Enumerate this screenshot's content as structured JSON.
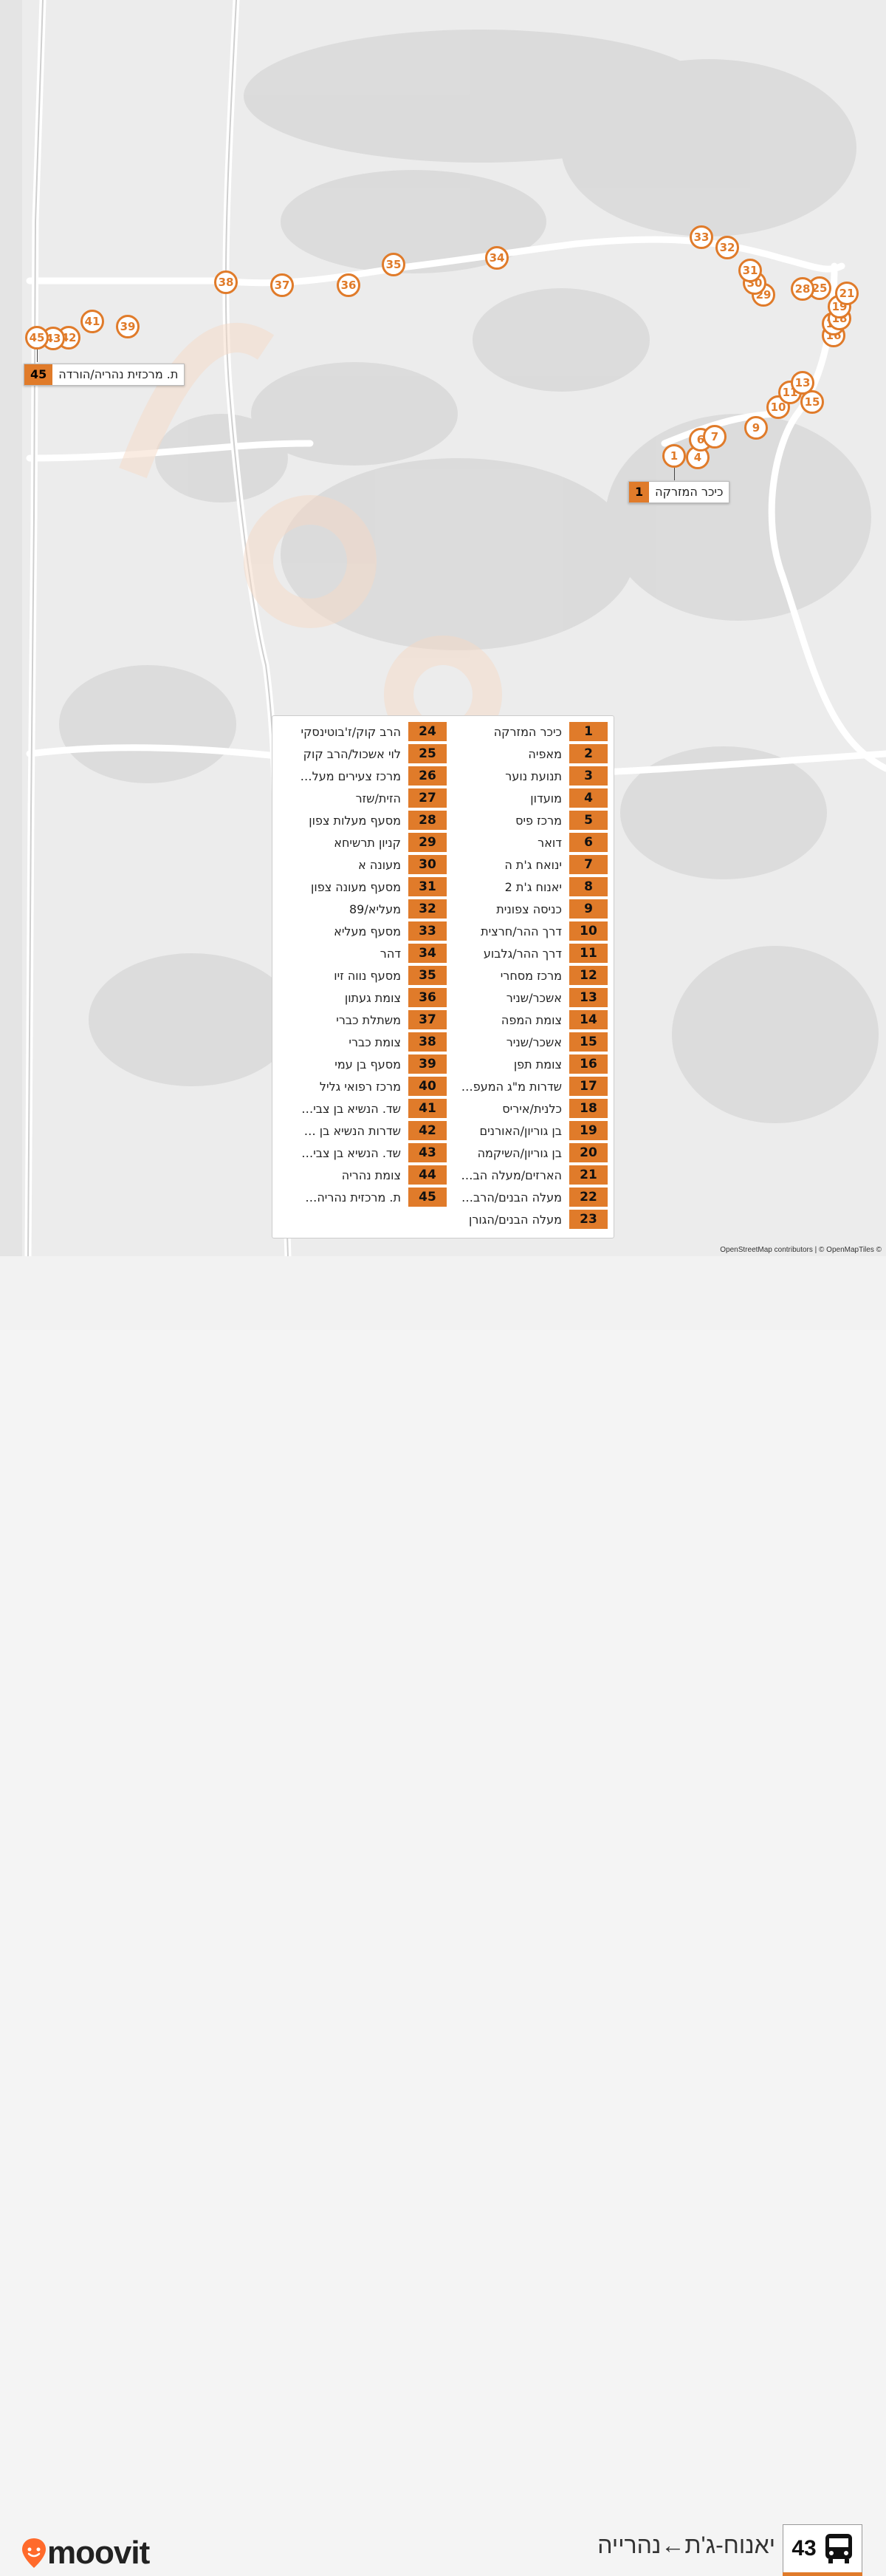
{
  "map": {
    "attribution": "OpenStreetMap contributors | © OpenMapTiles ©",
    "accent_color": "#e07b2a"
  },
  "markers": [
    "1",
    "4",
    "6",
    "7",
    "9",
    "10",
    "11",
    "13",
    "15",
    "16",
    "17",
    "18",
    "19",
    "21",
    "25",
    "28",
    "29",
    "30",
    "31",
    "32",
    "33",
    "34",
    "35",
    "36",
    "37",
    "38",
    "39",
    "41",
    "42",
    "43",
    "45"
  ],
  "callouts": {
    "start": {
      "num": "1",
      "name": "כיכר המזרקה"
    },
    "end": {
      "num": "45",
      "name": "ת. מרכזית נהריה/הורדה"
    }
  },
  "stops": [
    {
      "num": "1",
      "name": "כיכר המזרקה"
    },
    {
      "num": "2",
      "name": "מאפיה"
    },
    {
      "num": "3",
      "name": "תנועת נוער"
    },
    {
      "num": "4",
      "name": "מועדון"
    },
    {
      "num": "5",
      "name": "מרכז פיס"
    },
    {
      "num": "6",
      "name": "דואר"
    },
    {
      "num": "7",
      "name": "ינואח ג'ת ה"
    },
    {
      "num": "8",
      "name": "יאנוח ג'ת 2"
    },
    {
      "num": "9",
      "name": "כניסה צפונית"
    },
    {
      "num": "10",
      "name": "דרך ההר/חרצית"
    },
    {
      "num": "11",
      "name": "דרך ההר/גלבוע"
    },
    {
      "num": "12",
      "name": "מרכז מסחרי"
    },
    {
      "num": "13",
      "name": "אשכר/שניר"
    },
    {
      "num": "14",
      "name": "צומת המפה"
    },
    {
      "num": "15",
      "name": "אשכר/שניר"
    },
    {
      "num": "16",
      "name": "צומת תפן"
    },
    {
      "num": "17",
      "name": "שדרות מ\"ג המעפ…"
    },
    {
      "num": "18",
      "name": "כלנית/איריס"
    },
    {
      "num": "19",
      "name": "בן גוריון/האורנים"
    },
    {
      "num": "20",
      "name": "בן גוריון/השיקמה"
    },
    {
      "num": "21",
      "name": "הארזים/מעלה הב…"
    },
    {
      "num": "22",
      "name": "מעלה הבנים/הרב…"
    },
    {
      "num": "23",
      "name": "מעלה הבנים/הגורן"
    },
    {
      "num": "24",
      "name": "הרב קוק/ז'בוטינסקי"
    },
    {
      "num": "25",
      "name": "לוי אשכול/הרב קוק"
    },
    {
      "num": "26",
      "name": "מרכז צעירים מעל…"
    },
    {
      "num": "27",
      "name": "הזית/שזר"
    },
    {
      "num": "28",
      "name": "מסעף מעלות צפון"
    },
    {
      "num": "29",
      "name": "קניון תרשיחא"
    },
    {
      "num": "30",
      "name": "מעונה א"
    },
    {
      "num": "31",
      "name": "מסעף מעונה צפון"
    },
    {
      "num": "32",
      "name": "מעליא/89"
    },
    {
      "num": "33",
      "name": "מסעף מעליא"
    },
    {
      "num": "34",
      "name": "דהר"
    },
    {
      "num": "35",
      "name": "מסעף נווה זיו"
    },
    {
      "num": "36",
      "name": "צומת געתון"
    },
    {
      "num": "37",
      "name": "משתלת כברי"
    },
    {
      "num": "38",
      "name": "צומת כברי"
    },
    {
      "num": "39",
      "name": "מסעף בן עמי"
    },
    {
      "num": "40",
      "name": "מרכז רפואי גליל"
    },
    {
      "num": "41",
      "name": "שד. הנשיא בן צבי…"
    },
    {
      "num": "42",
      "name": "שדרות הנשיא בן …"
    },
    {
      "num": "43",
      "name": "שד. הנשיא בן צבי…"
    },
    {
      "num": "44",
      "name": "צומת נהריה"
    },
    {
      "num": "45",
      "name": "ת. מרכזית נהריה…"
    }
  ],
  "footer": {
    "logo": "moovit",
    "route_number": "43",
    "route_name": "יאנוח-ג'ת←נהרייה",
    "bus_icon": "bus-icon"
  }
}
